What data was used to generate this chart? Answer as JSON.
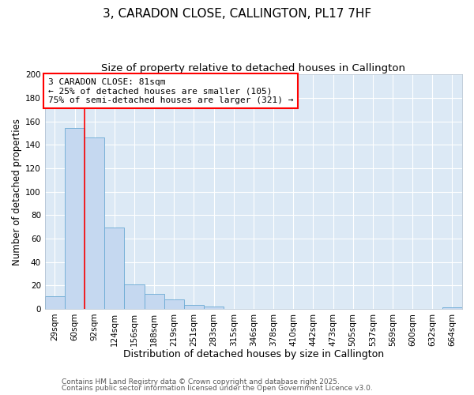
{
  "title": "3, CARADON CLOSE, CALLINGTON, PL17 7HF",
  "subtitle": "Size of property relative to detached houses in Callington",
  "xlabel": "Distribution of detached houses by size in Callington",
  "ylabel": "Number of detached properties",
  "bar_values": [
    11,
    154,
    146,
    69,
    21,
    13,
    8,
    3,
    2,
    0,
    0,
    0,
    0,
    0,
    0,
    0,
    0,
    0,
    0,
    0,
    1
  ],
  "bin_labels": [
    "29sqm",
    "60sqm",
    "92sqm",
    "124sqm",
    "156sqm",
    "188sqm",
    "219sqm",
    "251sqm",
    "283sqm",
    "315sqm",
    "346sqm",
    "378sqm",
    "410sqm",
    "442sqm",
    "473sqm",
    "505sqm",
    "537sqm",
    "569sqm",
    "600sqm",
    "632sqm",
    "664sqm"
  ],
  "bar_color": "#c5d8f0",
  "bar_edge_color": "#6aaad4",
  "plot_bg_color": "#dce9f5",
  "fig_bg_color": "#ffffff",
  "grid_color": "#ffffff",
  "red_line_x": 1.5,
  "annotation_text_line1": "3 CARADON CLOSE: 81sqm",
  "annotation_text_line2": "← 25% of detached houses are smaller (105)",
  "annotation_text_line3": "75% of semi-detached houses are larger (321) →",
  "ylim": [
    0,
    200
  ],
  "yticks": [
    0,
    20,
    40,
    60,
    80,
    100,
    120,
    140,
    160,
    180,
    200
  ],
  "footer1": "Contains HM Land Registry data © Crown copyright and database right 2025.",
  "footer2": "Contains public sector information licensed under the Open Government Licence v3.0.",
  "title_fontsize": 11,
  "subtitle_fontsize": 9.5,
  "xlabel_fontsize": 9,
  "ylabel_fontsize": 8.5,
  "tick_fontsize": 7.5,
  "annotation_fontsize": 8,
  "footer_fontsize": 6.5
}
